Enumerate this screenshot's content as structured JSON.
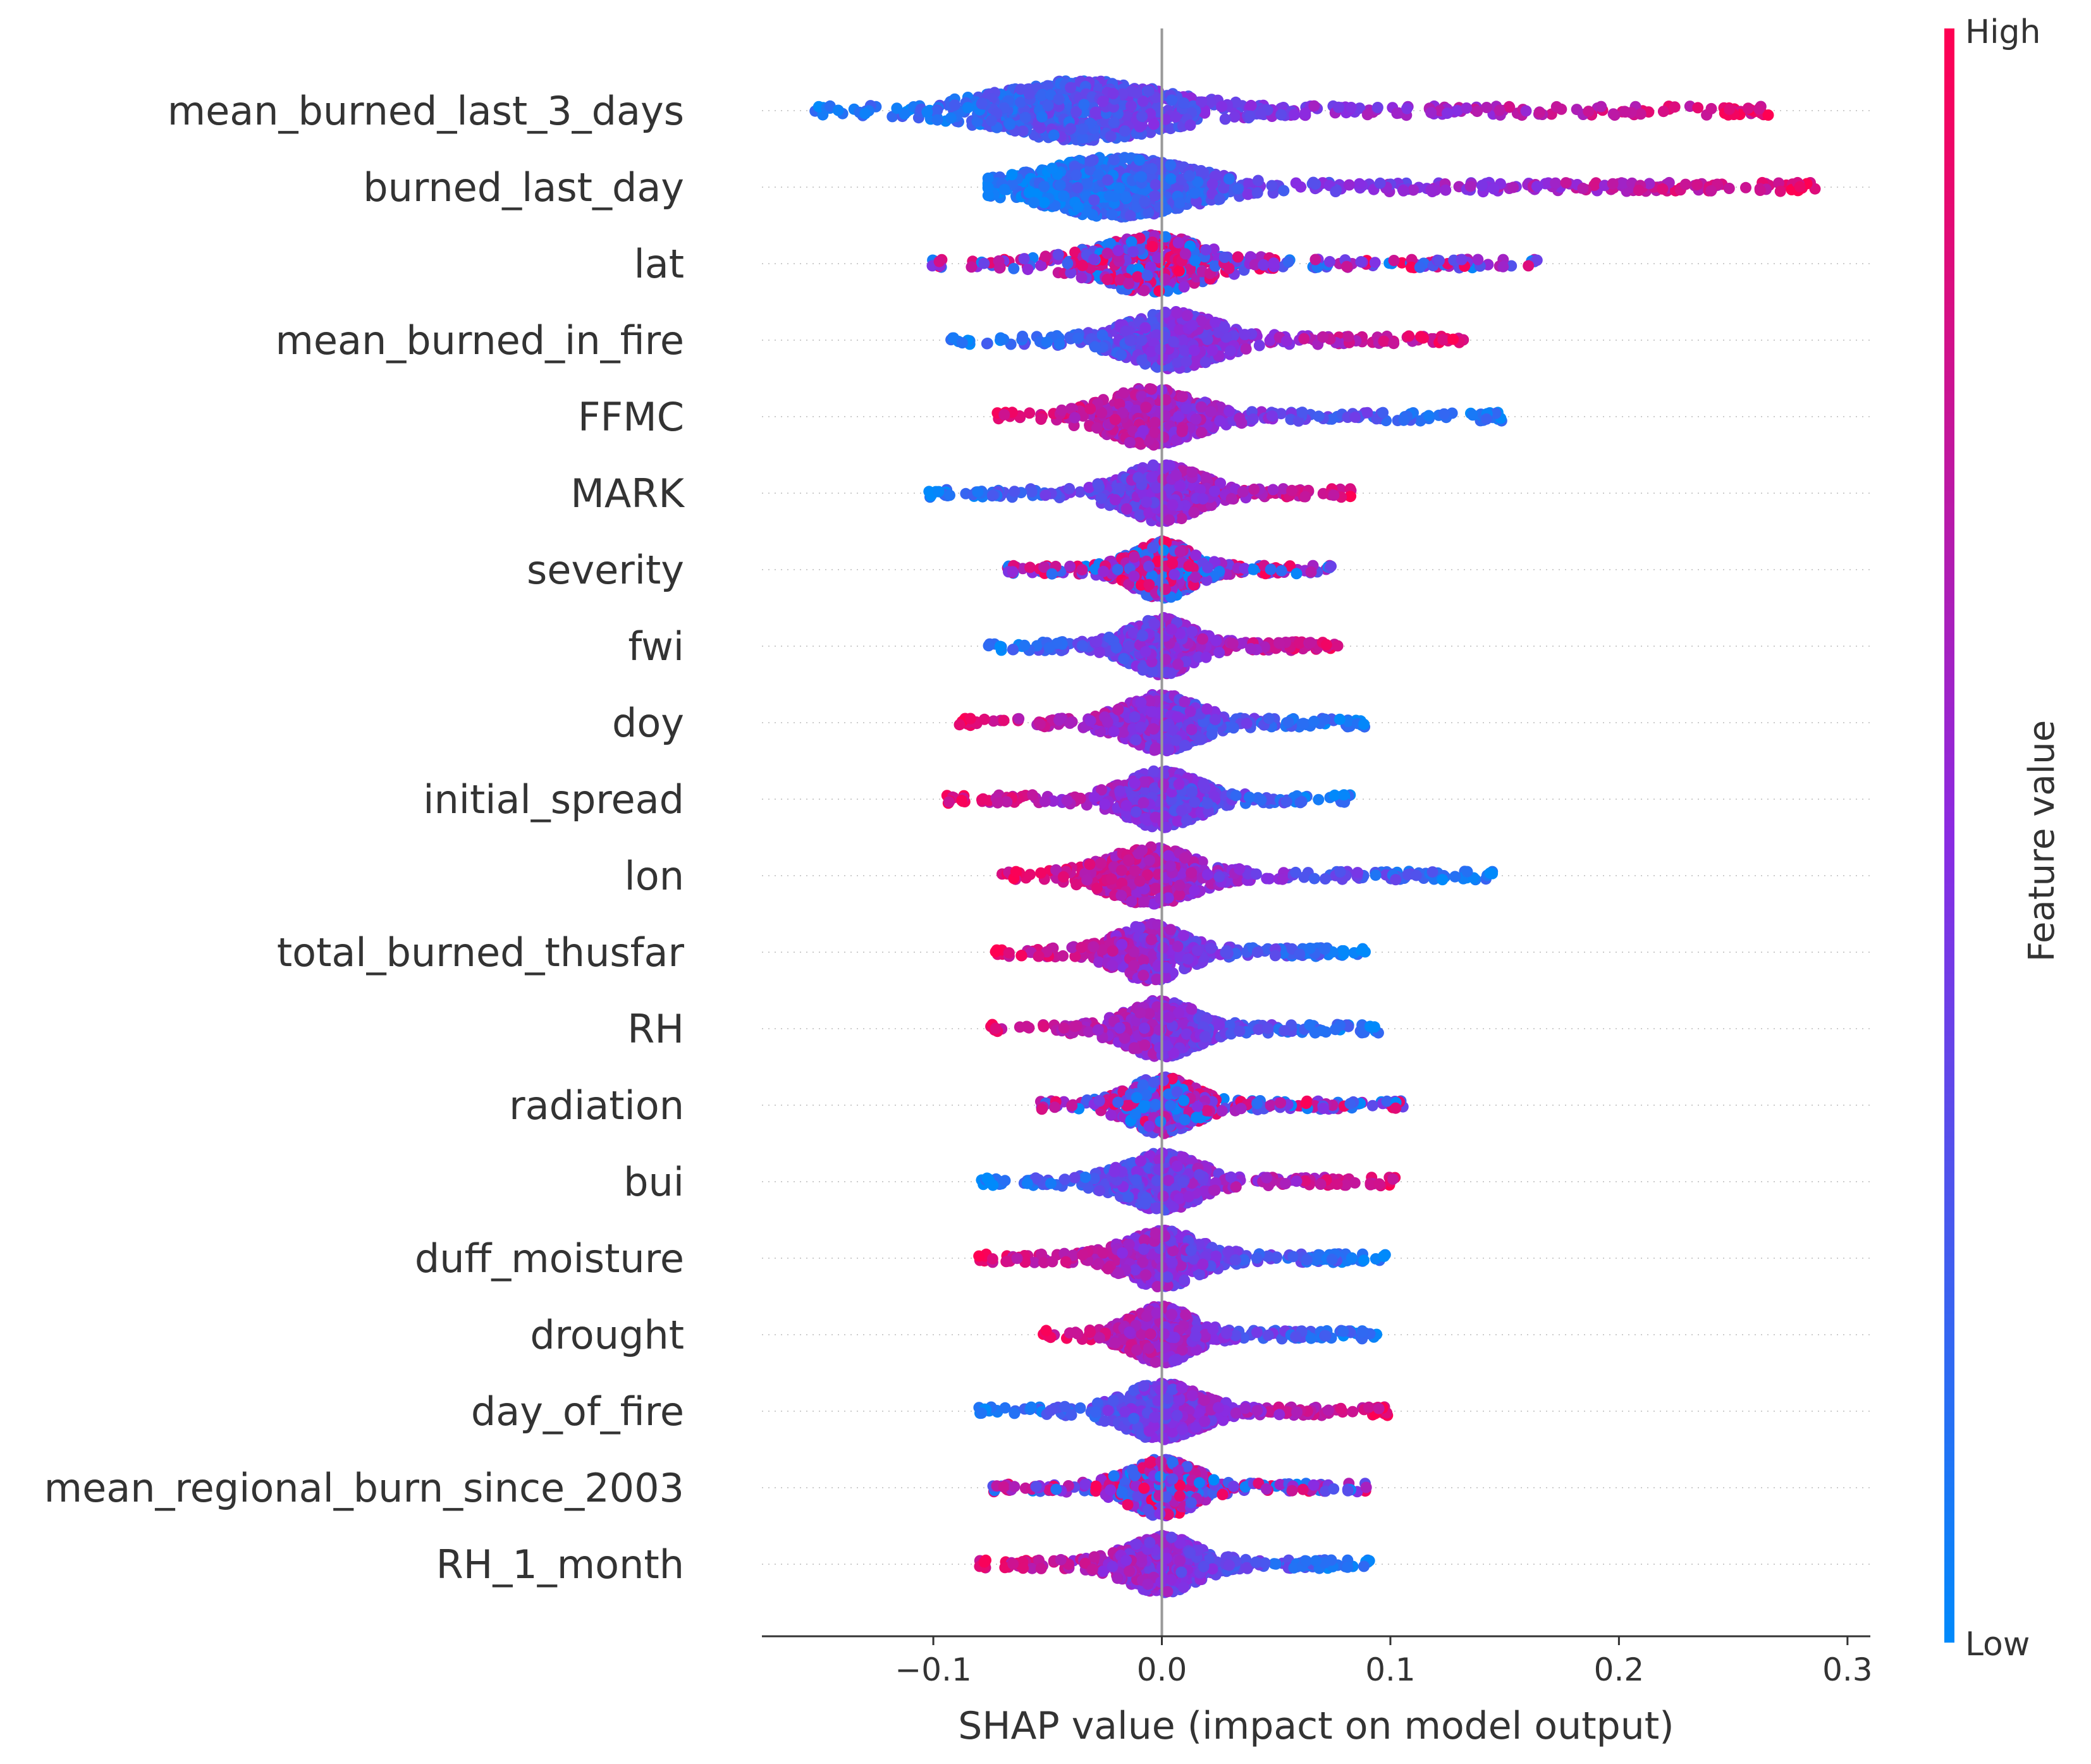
{
  "chart_data": {
    "type": "scatter",
    "subtype": "shap-beeswarm-summary",
    "xlabel": "SHAP value (impact on model output)",
    "xlim": [
      -0.175,
      0.31
    ],
    "xticks": [
      -0.1,
      0.0,
      0.1,
      0.2,
      0.3
    ],
    "xtick_labels": [
      "−0.1",
      "0.0",
      "0.1",
      "0.2",
      "0.3"
    ],
    "zero_line": 0.0,
    "grid": false,
    "colorbar": {
      "title": "Feature value",
      "high_label": "High",
      "low_label": "Low",
      "low_color": "#008afb",
      "mid_color": "#8a2be2",
      "high_color": "#ff0052"
    },
    "features": [
      {
        "name": "mean_burned_last_3_days",
        "min": -0.152,
        "max": 0.266,
        "spread": 0.45,
        "center": -0.035,
        "corr": 1
      },
      {
        "name": "burned_last_day",
        "min": -0.076,
        "max": 0.287,
        "spread": 0.55,
        "center": -0.02,
        "corr": 1
      },
      {
        "name": "lat",
        "min": -0.104,
        "max": 0.166,
        "spread": 0.7,
        "center": -0.005,
        "corr": 0
      },
      {
        "name": "mean_burned_in_fire",
        "min": -0.094,
        "max": 0.132,
        "spread": 0.65,
        "center": 0.005,
        "corr": 1
      },
      {
        "name": "FFMC",
        "min": -0.072,
        "max": 0.149,
        "spread": 0.6,
        "center": -0.005,
        "corr": -1
      },
      {
        "name": "MARK",
        "min": -0.102,
        "max": 0.087,
        "spread": 0.7,
        "center": 0.0,
        "corr": 1
      },
      {
        "name": "severity",
        "min": -0.069,
        "max": 0.075,
        "spread": 0.75,
        "center": 0.0,
        "corr": 0
      },
      {
        "name": "fwi",
        "min": -0.077,
        "max": 0.077,
        "spread": 0.75,
        "center": 0.0,
        "corr": 1
      },
      {
        "name": "doy",
        "min": -0.089,
        "max": 0.089,
        "spread": 0.75,
        "center": 0.0,
        "corr": -1
      },
      {
        "name": "initial_spread",
        "min": -0.094,
        "max": 0.084,
        "spread": 0.75,
        "center": 0.0,
        "corr": -1
      },
      {
        "name": "lon",
        "min": -0.07,
        "max": 0.147,
        "spread": 0.75,
        "center": -0.005,
        "corr": -1
      },
      {
        "name": "total_burned_thusfar",
        "min": -0.074,
        "max": 0.089,
        "spread": 0.75,
        "center": -0.005,
        "corr": -1
      },
      {
        "name": "RH",
        "min": -0.077,
        "max": 0.095,
        "spread": 0.75,
        "center": 0.0,
        "corr": -1
      },
      {
        "name": "radiation",
        "min": -0.053,
        "max": 0.106,
        "spread": 0.75,
        "center": 0.0,
        "corr": 0
      },
      {
        "name": "bui",
        "min": -0.079,
        "max": 0.104,
        "spread": 0.75,
        "center": 0.0,
        "corr": 1
      },
      {
        "name": "duff_moisture",
        "min": -0.082,
        "max": 0.099,
        "spread": 0.75,
        "center": 0.0,
        "corr": -1
      },
      {
        "name": "drought",
        "min": -0.053,
        "max": 0.094,
        "spread": 0.75,
        "center": 0.0,
        "corr": -1
      },
      {
        "name": "day_of_fire",
        "min": -0.08,
        "max": 0.099,
        "spread": 0.75,
        "center": 0.0,
        "corr": 1
      },
      {
        "name": "mean_regional_burn_since_2003",
        "min": -0.074,
        "max": 0.093,
        "spread": 0.75,
        "center": 0.0,
        "corr": 0
      },
      {
        "name": "RH_1_month",
        "min": -0.082,
        "max": 0.092,
        "spread": 0.75,
        "center": 0.0,
        "corr": -1
      }
    ]
  }
}
